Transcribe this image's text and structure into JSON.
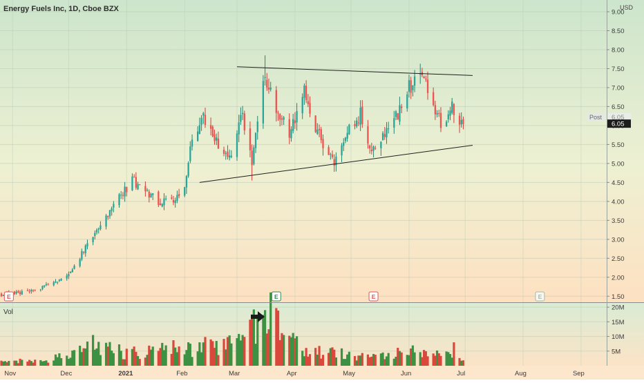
{
  "chart_data": {
    "type": "candlestick",
    "title": "Energy Fuels Inc, 1D, Cboe BZX",
    "currency": "USD",
    "price_scale": {
      "ticks": [
        "9.00",
        "8.50",
        "8.00",
        "7.50",
        "7.00",
        "6.50",
        "6.00",
        "5.50",
        "5.00",
        "4.50",
        "4.00",
        "3.50",
        "3.00",
        "2.50",
        "2.00",
        "1.50"
      ],
      "min": 1.45,
      "max": 9.0
    },
    "volume_scale": {
      "label": "Vol",
      "ticks": [
        "20M",
        "15M",
        "10M",
        "5M"
      ],
      "max": 20.5
    },
    "time_axis": [
      "Nov",
      "Dec",
      "2021",
      "Feb",
      "Mar",
      "Apr",
      "May",
      "Jun",
      "Jul",
      "Aug",
      "Sep"
    ],
    "last_price": "6.05",
    "post_label": "Post",
    "post_price": "6.05",
    "earnings_markers": [
      "E",
      "E",
      "E",
      "E"
    ],
    "colors": {
      "up": "#26a69a",
      "down": "#ef5350",
      "volume_up": "#3d9142",
      "volume_down": "#d9483b"
    },
    "anchors": [
      {
        "date": "2020-10-26",
        "close": 1.55
      },
      {
        "date": "2020-11-06",
        "close": 1.6
      },
      {
        "date": "2020-11-18",
        "close": 1.75
      },
      {
        "date": "2020-11-30",
        "close": 2.05
      },
      {
        "date": "2020-12-07",
        "close": 2.55
      },
      {
        "date": "2020-12-14",
        "close": 3.1
      },
      {
        "date": "2020-12-21",
        "close": 3.6
      },
      {
        "date": "2020-12-29",
        "close": 4.15
      },
      {
        "date": "2021-01-04",
        "close": 4.55
      },
      {
        "date": "2021-01-11",
        "close": 4.3
      },
      {
        "date": "2021-01-19",
        "close": 3.95
      },
      {
        "date": "2021-01-26",
        "close": 4.05
      },
      {
        "date": "2021-02-01",
        "close": 4.4
      },
      {
        "date": "2021-02-05",
        "close": 5.6
      },
      {
        "date": "2021-02-11",
        "close": 6.2
      },
      {
        "date": "2021-02-18",
        "close": 5.6
      },
      {
        "date": "2021-02-26",
        "close": 5.2
      },
      {
        "date": "2021-03-04",
        "close": 6.3
      },
      {
        "date": "2021-03-09",
        "close": 5.0
      },
      {
        "date": "2021-03-16",
        "close": 7.3
      },
      {
        "date": "2021-03-22",
        "close": 6.4
      },
      {
        "date": "2021-03-29",
        "close": 5.8
      },
      {
        "date": "2021-04-06",
        "close": 6.9
      },
      {
        "date": "2021-04-12",
        "close": 6.0
      },
      {
        "date": "2021-04-19",
        "close": 5.2
      },
      {
        "date": "2021-04-22",
        "close": 5.0
      },
      {
        "date": "2021-04-30",
        "close": 5.9
      },
      {
        "date": "2021-05-06",
        "close": 6.3
      },
      {
        "date": "2021-05-11",
        "close": 5.3
      },
      {
        "date": "2021-05-18",
        "close": 5.7
      },
      {
        "date": "2021-05-24",
        "close": 6.1
      },
      {
        "date": "2021-06-01",
        "close": 7.0
      },
      {
        "date": "2021-06-08",
        "close": 7.35
      },
      {
        "date": "2021-06-14",
        "close": 6.6
      },
      {
        "date": "2021-06-18",
        "close": 6.1
      },
      {
        "date": "2021-06-24",
        "close": 6.45
      },
      {
        "date": "2021-06-30",
        "close": 6.05
      }
    ],
    "volume_anchors": [
      {
        "date": "2020-10-26",
        "volume": 1.5
      },
      {
        "date": "2020-11-20",
        "volume": 1.8
      },
      {
        "date": "2020-12-01",
        "volume": 4.0
      },
      {
        "date": "2020-12-14",
        "volume": 6.0
      },
      {
        "date": "2021-01-06",
        "volume": 4.5
      },
      {
        "date": "2021-02-05",
        "volume": 6.5
      },
      {
        "date": "2021-03-05",
        "volume": 8.0
      },
      {
        "date": "2021-03-16",
        "volume": 19.0
      },
      {
        "date": "2021-04-06",
        "volume": 5.0
      },
      {
        "date": "2021-05-06",
        "volume": 3.5
      },
      {
        "date": "2021-06-08",
        "volume": 5.0
      },
      {
        "date": "2021-06-30",
        "volume": 2.5
      }
    ],
    "trendlines": [
      {
        "from": {
          "date": "2021-03-01",
          "price": 7.55
        },
        "to": {
          "date": "2021-07-05",
          "price": 7.32
        }
      },
      {
        "from": {
          "date": "2021-02-09",
          "price": 4.5
        },
        "to": {
          "date": "2021-07-05",
          "price": 5.48
        }
      }
    ]
  }
}
